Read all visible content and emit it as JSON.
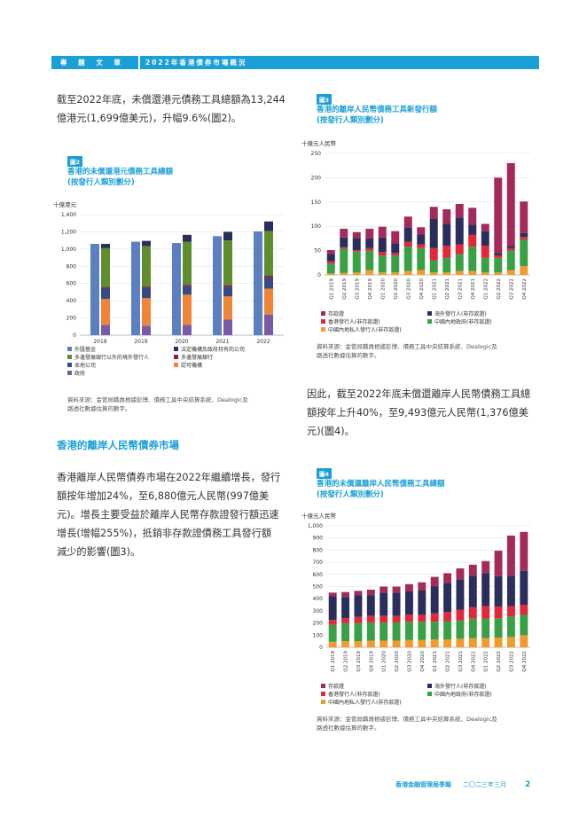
{
  "header": {
    "left": "專 題 文 章",
    "right": "2022年香港債券市場概況"
  },
  "left_column": {
    "para1_lines": [
      "截至2022年底，未償還港元債務工具總額為13,244",
      "億港元(1,699億美元)，升幅9.6%(圖2)。"
    ],
    "section_title": "香港的離岸人民幣債券市場",
    "para2_lines": [
      "香港離岸人民幣債券市場在2022年繼續增長，發行",
      "額按年增加24%，至6,880億元人民幣(997億美",
      "元)。增長主要受益於離岸人民幣存款證發行額迅速",
      "增長(增幅255%)，抵銷非存款證債務工具發行額",
      "減少的影響(圖3)。"
    ]
  },
  "right_column": {
    "para_lines": [
      "因此，截至2022年底未償還離岸人民幣債務工具總",
      "額按年上升40%，至9,493億元人民幣(1,376億美",
      "元)(圖4)。"
    ]
  },
  "chart2": {
    "tag": "圖2",
    "title_lines": [
      "香港的未償還港元債務工具總額",
      "(按發行人類別劃分)"
    ],
    "unit": "十億港元",
    "source_lines": [
      "資料來源：金管局職員根據彭博、債務工具中央結算系統、Dealogic及",
      "路透社數據估算的數字。"
    ],
    "legend": [
      {
        "label": "外匯基金",
        "color": "#5b7fc1"
      },
      {
        "label": "法定機構及政府持有的公司",
        "color": "#2b2d5c"
      },
      {
        "label": "多邊發展銀行以外的境外發行人",
        "color": "#5e8e2e"
      },
      {
        "label": "多邊發展銀行",
        "color": "#8a1f3a"
      },
      {
        "label": "本地公司",
        "color": "#3a4a80"
      },
      {
        "label": "認可機構",
        "color": "#f08437"
      },
      {
        "label": "政府",
        "color": "#7a5aa8"
      }
    ]
  },
  "chart3": {
    "tag": "圖3",
    "title_lines": [
      "香港的離岸人民幣債務工具新發行額",
      "(按發行人類別劃分)"
    ],
    "unit": "十億元人民幣",
    "source_lines": [
      "資料來源：金管局職員根據彭博、債務工具中央結算系統、Dealogic及",
      "路透社數據估算的數字。"
    ],
    "legend": [
      {
        "label": "存款證",
        "color": "#a42a5c"
      },
      {
        "label": "海外發行人(非存款證)",
        "color": "#2b2d5c"
      },
      {
        "label": "香港發行人(非存款證)",
        "color": "#e0283a"
      },
      {
        "label": "中國內地政府(非存款證)",
        "color": "#3aa046"
      },
      {
        "label": "中國內地私人發行人(非存款證)",
        "color": "#f39a2a"
      }
    ]
  },
  "chart4": {
    "tag": "圖4",
    "title_lines": [
      "香港的未償還離岸人民幣債務工具總額",
      "(按發行人類別劃分)"
    ],
    "unit": "十億元人民幣",
    "source_lines": [
      "資料來源：金管局職員根據彭博、債務工具中央結算系統、Dealogic及",
      "路透社數據估算的數字。"
    ],
    "legend": [
      {
        "label": "存款證",
        "color": "#a42a5c"
      },
      {
        "label": "海外發行人(非存款證)",
        "color": "#2b2d5c"
      },
      {
        "label": "香港發行人(非存款證)",
        "color": "#e0283a"
      },
      {
        "label": "中國內地政府(非存款證)",
        "color": "#3aa046"
      },
      {
        "label": "中國內地私人發行人(非存款證)",
        "color": "#f39a2a"
      }
    ]
  },
  "chart_data": [
    {
      "type": "bar",
      "id": "chart2",
      "title": "香港的未償還港元債務工具總額",
      "ylabel": "十億港元",
      "categories": [
        "2018",
        "2019",
        "2020",
        "2021",
        "2022"
      ],
      "ylim": [
        0,
        1400
      ],
      "yticks": [
        0,
        200,
        400,
        600,
        800,
        1000,
        1200,
        1400
      ],
      "groups": [
        {
          "name": "外匯基金",
          "color": "#5b7fc1",
          "values": [
            1060,
            1085,
            1070,
            1150,
            1205
          ]
        },
        {
          "name": "stack",
          "segments": [
            {
              "name": "政府",
              "color": "#7a5aa8",
              "values": [
                120,
                110,
                120,
                180,
                240
              ]
            },
            {
              "name": "認可機構",
              "color": "#f08437",
              "values": [
                300,
                320,
                350,
                270,
                300
              ]
            },
            {
              "name": "本地公司",
              "color": "#3a4a80",
              "values": [
                130,
                120,
                100,
                110,
                130
              ]
            },
            {
              "name": "多邊發展銀行",
              "color": "#8a1f3a",
              "values": [
                10,
                15,
                15,
                20,
                20
              ]
            },
            {
              "name": "多邊發展銀行以外的境外發行人",
              "color": "#5e8e2e",
              "values": [
                450,
                470,
                500,
                520,
                520
              ]
            },
            {
              "name": "法定機構及政府持有的公司",
              "color": "#2b2d5c",
              "values": [
                50,
                60,
                80,
                100,
                110
              ]
            }
          ]
        }
      ]
    },
    {
      "type": "bar",
      "id": "chart3",
      "title": "香港的離岸人民幣債務工具新發行額",
      "ylabel": "十億元人民幣",
      "categories": [
        "Q1 2019",
        "Q2 2019",
        "Q3 2019",
        "Q4 2019",
        "Q1 2020",
        "Q2 2020",
        "Q3 2020",
        "Q4 2020",
        "Q1 2021",
        "Q2 2021",
        "Q3 2021",
        "Q4 2021",
        "Q1 2022",
        "Q2 2022",
        "Q3 2022",
        "Q4 2022"
      ],
      "ylim": [
        0,
        250
      ],
      "yticks": [
        0,
        50,
        100,
        150,
        200,
        250
      ],
      "series": [
        {
          "name": "中國內地私人發行人(非存款證)",
          "color": "#f39a2a",
          "values": [
            3,
            4,
            5,
            10,
            5,
            5,
            8,
            10,
            5,
            5,
            8,
            8,
            5,
            5,
            10,
            18
          ]
        },
        {
          "name": "中國內地政府(非存款證)",
          "color": "#3aa046",
          "values": [
            20,
            50,
            43,
            40,
            35,
            35,
            50,
            45,
            25,
            30,
            35,
            50,
            30,
            30,
            40,
            55
          ]
        },
        {
          "name": "香港發行人(非存款證)",
          "color": "#e0283a",
          "values": [
            5,
            3,
            3,
            5,
            7,
            5,
            10,
            8,
            25,
            25,
            20,
            25,
            25,
            5,
            5,
            5
          ]
        },
        {
          "name": "海外發行人(非存款證)",
          "color": "#2b2d5c",
          "values": [
            15,
            20,
            25,
            20,
            30,
            20,
            30,
            20,
            60,
            45,
            55,
            20,
            30,
            5,
            5,
            8
          ]
        },
        {
          "name": "存款證",
          "color": "#a42a5c",
          "values": [
            8,
            18,
            12,
            20,
            22,
            25,
            22,
            15,
            25,
            30,
            28,
            35,
            15,
            155,
            170,
            65
          ]
        }
      ]
    },
    {
      "type": "bar",
      "id": "chart4",
      "title": "香港的未償還離岸人民幣債務工具總額",
      "ylabel": "十億元人民幣",
      "categories": [
        "Q1 2019",
        "Q2 2019",
        "Q3 2019",
        "Q4 2019",
        "Q1 2020",
        "Q2 2020",
        "Q3 2020",
        "Q4 2020",
        "Q1 2021",
        "Q2 2021",
        "Q3 2021",
        "Q4 2021",
        "Q1 2022",
        "Q2 2022",
        "Q3 2022",
        "Q4 2022"
      ],
      "ylim": [
        0,
        1000
      ],
      "yticks": [
        0,
        100,
        200,
        300,
        400,
        500,
        600,
        700,
        800,
        900,
        1000
      ],
      "series": [
        {
          "name": "中國內地私人發行人(非存款證)",
          "color": "#f39a2a",
          "values": [
            45,
            50,
            50,
            55,
            55,
            55,
            60,
            60,
            65,
            65,
            70,
            75,
            75,
            80,
            85,
            100
          ]
        },
        {
          "name": "中國內地政府(非存款證)",
          "color": "#3aa046",
          "values": [
            140,
            150,
            150,
            150,
            150,
            150,
            150,
            150,
            145,
            150,
            150,
            160,
            160,
            160,
            170,
            170
          ]
        },
        {
          "name": "香港發行人(非存款證)",
          "color": "#e0283a",
          "values": [
            40,
            40,
            50,
            55,
            55,
            55,
            60,
            60,
            70,
            75,
            90,
            95,
            105,
            95,
            85,
            80
          ]
        },
        {
          "name": "海外發行人(非存款證)",
          "color": "#2b2d5c",
          "values": [
            195,
            175,
            180,
            170,
            190,
            190,
            190,
            200,
            220,
            240,
            250,
            260,
            270,
            250,
            250,
            280
          ]
        },
        {
          "name": "存款證",
          "color": "#a42a5c",
          "values": [
            30,
            40,
            35,
            45,
            50,
            50,
            60,
            65,
            80,
            80,
            90,
            90,
            100,
            210,
            330,
            320
          ]
        }
      ]
    }
  ],
  "footer": {
    "publication": "香港金融管理局季報",
    "date": "二〇二三年三月",
    "page": "2"
  }
}
